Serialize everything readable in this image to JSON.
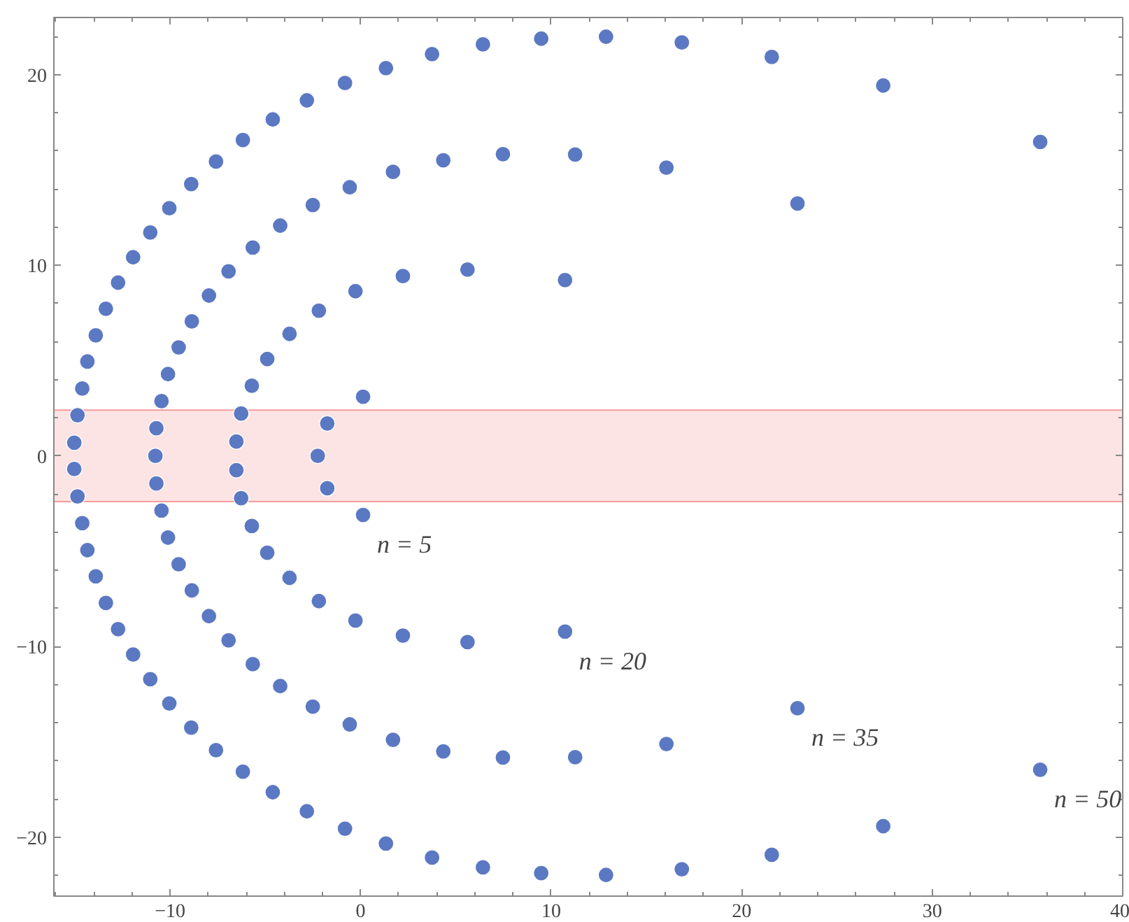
{
  "chart_data": {
    "type": "scatter",
    "marker": "circle",
    "grid": false,
    "xlim": [
      -16.1,
      40
    ],
    "ylim": [
      -23.1,
      23
    ],
    "xticks": [
      -10,
      0,
      10,
      20,
      30,
      40
    ],
    "yticks": [
      -20,
      -10,
      0,
      10,
      20
    ],
    "bands": [
      {
        "axis": "y",
        "from": -2.4,
        "to": 2.4,
        "color": "#fde4e4"
      }
    ],
    "series": [
      {
        "name": "n = 5",
        "color": "#5b78c2",
        "x": [
          0.13,
          -1.75,
          -2.25,
          -1.75,
          0.13
        ],
        "values": [
          3.1,
          1.7,
          0,
          -1.7,
          -3.1
        ]
      },
      {
        "name": "n = 20",
        "color": "#5b78c2",
        "x": [
          10.73,
          5.61,
          2.22,
          -0.27,
          -2.19,
          -3.73,
          -4.9,
          -5.71,
          -6.27,
          -6.52,
          -6.52,
          -6.27,
          -5.71,
          -4.9,
          -3.73,
          -2.19,
          -0.27,
          2.22,
          5.61,
          10.73
        ],
        "values": [
          9.22,
          9.77,
          9.43,
          8.64,
          7.62,
          6.4,
          5.08,
          3.68,
          2.22,
          0.75,
          -0.75,
          -2.22,
          -3.68,
          -5.08,
          -6.4,
          -7.62,
          -8.64,
          -9.43,
          -9.77,
          -9.22
        ]
      },
      {
        "name": "n = 35",
        "color": "#5b78c2",
        "x": [
          22.93,
          16.05,
          11.26,
          7.47,
          4.34,
          1.7,
          -0.57,
          -2.51,
          -4.22,
          -5.66,
          -6.93,
          -7.96,
          -8.86,
          -9.55,
          -10.11,
          -10.45,
          -10.72,
          -10.77,
          -10.72,
          -10.45,
          -10.11,
          -9.55,
          -8.86,
          -7.96,
          -6.93,
          -5.66,
          -4.22,
          -2.51,
          -0.57,
          1.7,
          4.34,
          7.47,
          11.26,
          16.05,
          22.93
        ],
        "values": [
          13.24,
          15.12,
          15.81,
          15.83,
          15.51,
          14.9,
          14.09,
          13.16,
          12.08,
          10.93,
          9.68,
          8.41,
          7.06,
          5.69,
          4.29,
          2.87,
          1.45,
          0,
          -1.45,
          -2.87,
          -4.29,
          -5.69,
          -7.06,
          -8.41,
          -9.68,
          -10.93,
          -12.08,
          -13.16,
          -14.09,
          -14.9,
          -15.51,
          -15.83,
          -15.81,
          -15.12,
          -13.24
        ]
      },
      {
        "name": "n = 50",
        "color": "#5b78c2",
        "x": [
          35.67,
          27.43,
          21.58,
          16.86,
          12.88,
          9.48,
          6.42,
          3.75,
          1.33,
          -0.82,
          -2.82,
          -4.61,
          -6.18,
          -7.59,
          -8.89,
          -10.04,
          -11.04,
          -11.94,
          -12.73,
          -13.37,
          -13.9,
          -14.34,
          -14.61,
          -14.86,
          -15.03,
          -15.03,
          -14.86,
          -14.61,
          -14.34,
          -13.9,
          -13.37,
          -12.73,
          -11.94,
          -11.04,
          -10.04,
          -8.89,
          -7.59,
          -6.18,
          -4.61,
          -2.82,
          -0.82,
          1.33,
          3.75,
          6.42,
          9.48,
          12.88,
          16.86,
          21.58,
          27.43,
          35.67
        ],
        "values": [
          16.47,
          19.43,
          20.93,
          21.69,
          21.99,
          21.89,
          21.59,
          21.08,
          20.34,
          19.56,
          18.65,
          17.65,
          16.57,
          15.44,
          14.26,
          12.99,
          11.72,
          10.42,
          9.09,
          7.72,
          6.32,
          4.95,
          3.53,
          2.13,
          0.69,
          -0.69,
          -2.13,
          -3.53,
          -4.95,
          -6.32,
          -7.72,
          -9.09,
          -10.42,
          -11.72,
          -12.99,
          -14.26,
          -15.44,
          -16.57,
          -17.65,
          -18.65,
          -19.56,
          -20.34,
          -21.08,
          -21.59,
          -21.89,
          -21.99,
          -21.69,
          -20.93,
          -19.43,
          -16.47
        ]
      }
    ]
  }
}
